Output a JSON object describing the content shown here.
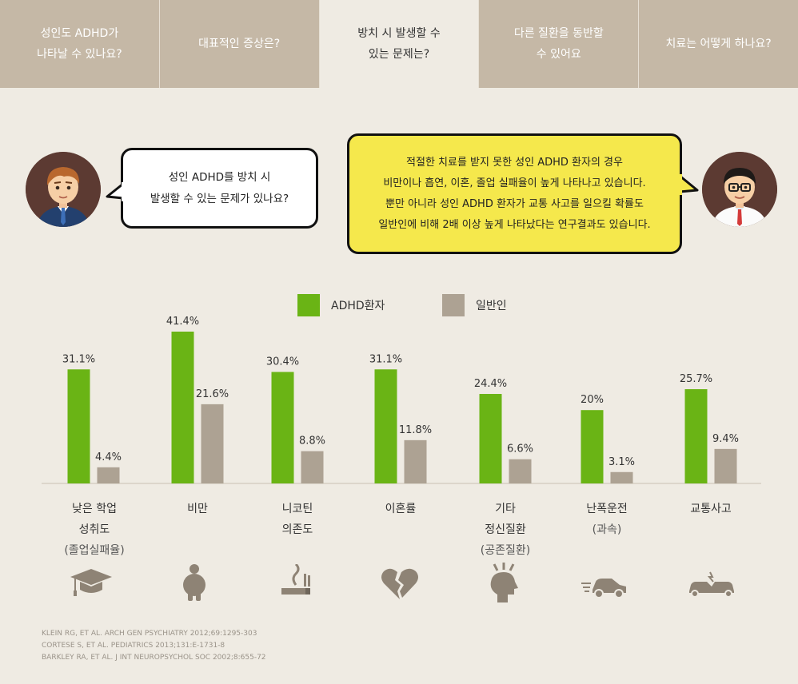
{
  "tabs": [
    {
      "label": "성인도 ADHD가\n나타날 수 있나요?",
      "active": false
    },
    {
      "label": "대표적인 증상은?",
      "active": false
    },
    {
      "label": "방치 시 발생할 수\n있는 문제는?",
      "active": true
    },
    {
      "label": "다른 질환을 동반할\n수 있어요",
      "active": false
    },
    {
      "label": "치료는 어떻게 하나요?",
      "active": false
    }
  ],
  "dialogue": {
    "patient_question": "성인 ADHD를 방치 시\n발생할 수 있는 문제가 있나요?",
    "doctor_answer": "적절한 치료를 받지 못한 성인 ADHD 환자의 경우\n비만이나 흡연, 이혼, 졸업 실패율이 높게 나타나고 있습니다.\n뿐만 아니라 성인 ADHD 환자가 교통 사고를 일으킬 확률도\n일반인에 비해 2배 이상 높게 나타났다는 연구결과도 있습니다."
  },
  "colors": {
    "adhd": "#6ab415",
    "general": "#ada293",
    "tab_bg": "#c5b8a6",
    "page_bg": "#efebe3",
    "speech_yellow": "#f5e84c",
    "icon": "#8e8375"
  },
  "chart_data": {
    "type": "bar",
    "categories": [
      "낮은 학업 성취도",
      "비만",
      "니코틴 의존도",
      "이혼률",
      "기타 정신질환",
      "난폭운전",
      "교통사고"
    ],
    "series": [
      {
        "name": "ADHD환자",
        "values": [
          31.1,
          41.4,
          30.4,
          31.1,
          24.4,
          20,
          25.7
        ],
        "labels": [
          "31.1%",
          "41.4%",
          "30.4%",
          "31.1%",
          "24.4%",
          "20%",
          "25.7%"
        ]
      },
      {
        "name": "일반인",
        "values": [
          4.4,
          21.6,
          8.8,
          11.8,
          6.6,
          3.1,
          9.4
        ],
        "labels": [
          "4.4%",
          "21.6%",
          "8.8%",
          "11.8%",
          "6.6%",
          "3.1%",
          "9.4%"
        ]
      }
    ],
    "ylim": [
      0,
      41.4
    ],
    "legend": "top-center",
    "grid": false
  },
  "category_labels": [
    {
      "main": "낮은 학업\n성취도",
      "sub": "(졸업실패율)",
      "icon": "graduation-cap-icon"
    },
    {
      "main": "비만",
      "sub": "",
      "icon": "obesity-icon"
    },
    {
      "main": "니코틴\n의존도",
      "sub": "",
      "icon": "cigarette-icon"
    },
    {
      "main": "이혼률",
      "sub": "",
      "icon": "broken-heart-icon"
    },
    {
      "main": "기타\n정신질환",
      "sub": "(공존질환)",
      "icon": "stressed-head-icon"
    },
    {
      "main": "난폭운전",
      "sub": "(과속)",
      "icon": "speeding-car-icon"
    },
    {
      "main": "교통사고",
      "sub": "",
      "icon": "car-crash-icon"
    }
  ],
  "references": [
    "KLEIN RG, ET AL. ARCH GEN PSYCHIATRY 2012;69:1295-303",
    "CORTESE S, ET AL. PEDIATRICS 2013;131:E-1731-8",
    "BARKLEY RA, ET AL. J INT NEUROPSYCHOL SOC 2002;8:655-72"
  ]
}
